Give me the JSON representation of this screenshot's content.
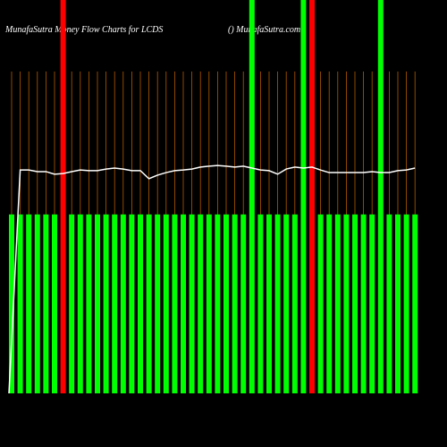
{
  "chart_data": {
    "type": "money-flow",
    "title": "MunafaSutra  Money Flow  Charts for LCDS",
    "subtitle": "() MunafaSutra.com",
    "ylim": [
      0,
      100
    ],
    "categories": [
      null,
      null,
      null,
      null,
      null,
      null,
      null,
      null,
      null,
      null,
      null,
      null,
      null,
      null,
      null,
      null,
      null,
      null,
      null,
      null,
      null,
      null,
      null,
      null,
      null,
      null,
      null,
      null,
      null,
      null,
      null,
      null,
      null,
      null,
      null,
      null,
      null,
      null,
      null,
      null,
      null,
      null,
      null,
      null,
      null,
      null,
      null,
      null
    ],
    "series": [
      {
        "kind": "bar",
        "values": [
          55.6,
          55.6,
          55.6,
          55.6,
          55.6,
          55.6,
          null,
          55.6,
          55.6,
          55.6,
          55.6,
          55.6,
          55.6,
          55.6,
          55.6,
          55.6,
          55.6,
          55.6,
          55.6,
          55.6,
          55.6,
          55.6,
          55.6,
          55.6,
          55.6,
          55.6,
          55.6,
          55.6,
          null,
          55.6,
          55.6,
          55.6,
          55.6,
          55.6,
          null,
          null,
          55.6,
          55.6,
          55.6,
          55.6,
          55.6,
          55.6,
          55.6,
          null,
          55.6,
          55.6,
          55.6,
          55.6
        ],
        "colors": [
          "#00ff00",
          "#00ff00",
          "#00ff00",
          "#00ff00",
          "#00ff00",
          "#00ff00",
          "#00ff00",
          "#00ff00",
          "#00ff00",
          "#00ff00",
          "#00ff00",
          "#00ff00",
          "#00ff00",
          "#00ff00",
          "#00ff00",
          "#00ff00",
          "#00ff00",
          "#00ff00",
          "#00ff00",
          "#00ff00",
          "#00ff00",
          "#00ff00",
          "#00ff00",
          "#00ff00",
          "#00ff00",
          "#00ff00",
          "#00ff00",
          "#00ff00",
          "#00ff00",
          "#00ff00",
          "#00ff00",
          "#00ff00",
          "#00ff00",
          "#00ff00",
          "#00ff00",
          "#00ff00",
          "#00ff00",
          "#00ff00",
          "#00ff00",
          "#00ff00",
          "#00ff00",
          "#00ff00",
          "#00ff00",
          "#00ff00",
          "#00ff00",
          "#00ff00",
          "#00ff00",
          "#00ff00"
        ]
      },
      {
        "kind": "line",
        "color": "#ffffff",
        "values": [
          0,
          69.4,
          69.4,
          68.9,
          68.9,
          68.1,
          68.3,
          68.9,
          69.4,
          69.2,
          69.2,
          69.7,
          70,
          69.7,
          69.2,
          69.2,
          66.7,
          67.8,
          68.6,
          69.2,
          69.4,
          69.7,
          70.3,
          70.6,
          70.8,
          70.6,
          70.3,
          70.6,
          70,
          69.4,
          69.2,
          68.1,
          69.7,
          70.3,
          70,
          70.3,
          69.4,
          68.6,
          68.6,
          68.6,
          68.6,
          68.6,
          68.9,
          68.6,
          68.6,
          69.2,
          69.4,
          70
        ]
      }
    ],
    "bands": [
      {
        "index": 6,
        "color": "#ff0000"
      },
      {
        "index": 28,
        "color": "#00ff00"
      },
      {
        "index": 34,
        "color": "#00ff00"
      },
      {
        "index": 35,
        "color": "#ff0000"
      },
      {
        "index": 43,
        "color": "#00ff00"
      }
    ],
    "grid": true,
    "grid_color": "#b35900"
  }
}
